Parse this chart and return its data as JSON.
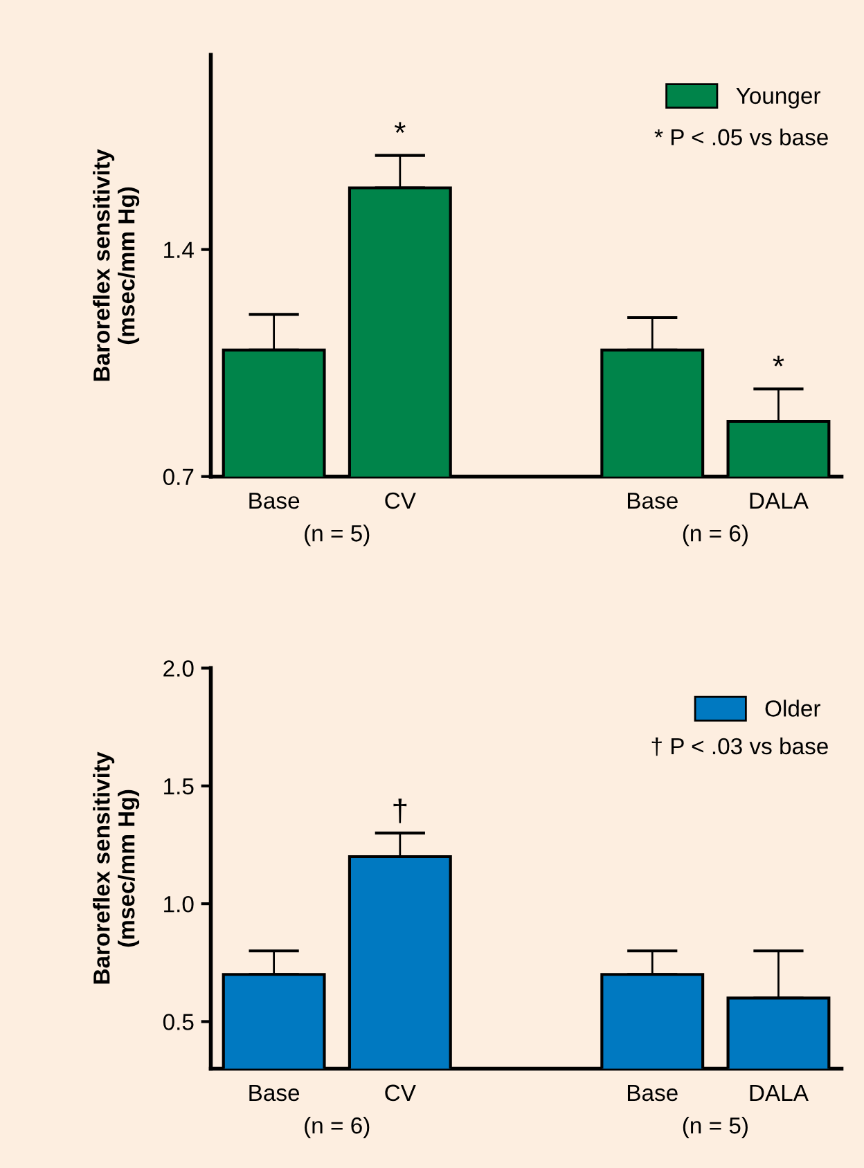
{
  "chart_data": [
    {
      "type": "bar",
      "ylabel": "Baroreflex sensitivity\n(msec/mm Hg)",
      "categories": [
        "Base",
        "CV",
        null,
        "Base",
        "DALA"
      ],
      "series": [
        {
          "name": "Younger",
          "color": "#00844a",
          "values": [
            1.09,
            1.59,
            null,
            1.09,
            0.87
          ],
          "errors": [
            [
              1.09,
              1.2
            ],
            [
              1.59,
              1.69
            ],
            null,
            [
              1.09,
              1.19
            ],
            [
              0.87,
              0.97
            ]
          ]
        }
      ],
      "ylim": [
        0.7,
        2.0
      ],
      "yticks": [
        0.7,
        1.4
      ],
      "legend": "top right",
      "grid": false,
      "annotations": [
        "* P < .05 vs base",
        "(n = 5)",
        "(n = 6)",
        {
          "text": "*",
          "x": "CV",
          "y": 1.69
        },
        {
          "text": "*",
          "x": "DALA",
          "y": 0.97
        }
      ]
    },
    {
      "type": "bar",
      "ylabel": "Baroreflex sensitivity\n(msec/mm Hg)",
      "categories": [
        "Base",
        "CV",
        null,
        "Base",
        "DALA"
      ],
      "series": [
        {
          "name": "Older",
          "color": "#0079c1",
          "values": [
            0.7,
            1.2,
            null,
            0.7,
            0.6
          ],
          "errors": [
            [
              0.7,
              0.8
            ],
            [
              1.2,
              1.3
            ],
            null,
            [
              0.7,
              0.8
            ],
            [
              0.6,
              0.8
            ]
          ]
        }
      ],
      "ylim": [
        0.3,
        2.0
      ],
      "yticks": [
        {
          "value": 0.5,
          "label": "0.5"
        },
        {
          "value": 1.0,
          "label": "1.0"
        },
        {
          "value": 1.5,
          "label": "1.5"
        },
        {
          "value": 2.0,
          "label": "2.0"
        }
      ],
      "legend": "top right",
      "grid": false,
      "annotations": [
        "† P < .03 vs base",
        "(n = 6)",
        "(n = 5)",
        {
          "text": "†",
          "x": "CV",
          "y": 1.3
        }
      ]
    }
  ]
}
